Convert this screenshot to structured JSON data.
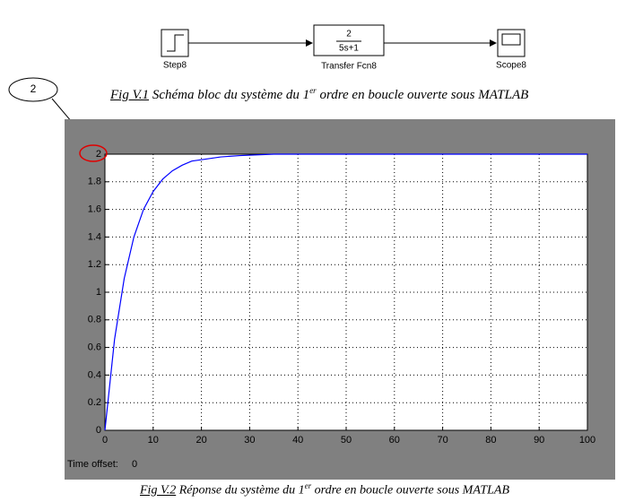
{
  "diagram": {
    "blocks": [
      {
        "label": "Step8"
      },
      {
        "label": "Transfer Fcn8",
        "numerator": "2",
        "denominator": "5s+1"
      },
      {
        "label": "Scope8"
      }
    ]
  },
  "callout": "2",
  "caption1": {
    "label": "Fig V.1",
    "text": "Schéma bloc du système du 1",
    "sup": "er",
    "rest": "ordre en boucle ouverte sous MATLAB"
  },
  "chart_data": {
    "type": "line",
    "x": [
      0,
      2,
      4,
      6,
      8,
      10,
      12,
      14,
      16,
      18,
      20,
      24,
      28,
      35,
      50,
      100
    ],
    "values": [
      0,
      0.66,
      1.1,
      1.4,
      1.6,
      1.73,
      1.82,
      1.88,
      1.92,
      1.95,
      1.96,
      1.98,
      1.99,
      2,
      2,
      2
    ],
    "color": "#0000ff",
    "xlim": [
      0,
      100
    ],
    "xticks": [
      0,
      10,
      20,
      30,
      40,
      50,
      60,
      70,
      80,
      90,
      100
    ],
    "ylim": [
      0,
      2
    ],
    "yticks": [
      0,
      0.2,
      0.4,
      0.6,
      0.8,
      1,
      1.2,
      1.4,
      1.6,
      1.8,
      2
    ],
    "grid": true,
    "footer_label": "Time offset:",
    "footer_value": "0"
  },
  "caption2": {
    "label": "Fig V.2",
    "text": "Réponse du système du 1",
    "sup": "er",
    "rest": "ordre en boucle ouverte sous MATLAB"
  }
}
